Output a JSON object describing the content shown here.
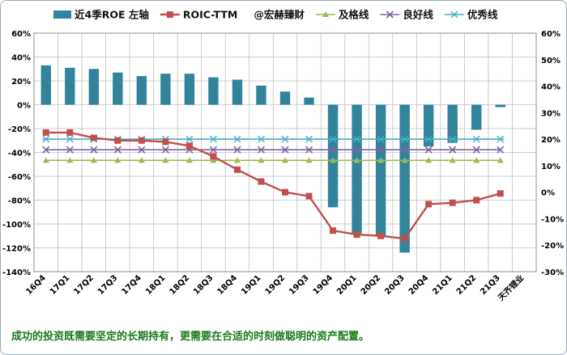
{
  "chart_data": {
    "type": "bar+line",
    "categories": [
      "16Q4",
      "17Q1",
      "17Q2",
      "17Q3",
      "17Q4",
      "18Q1",
      "18Q2",
      "18Q3",
      "18Q4",
      "19Q1",
      "19Q2",
      "19Q3",
      "19Q4",
      "20Q1",
      "20Q2",
      "20Q3",
      "20Q4",
      "21Q1",
      "21Q2",
      "21Q3",
      "天齐锂业"
    ],
    "series": [
      {
        "name": "近4季ROE 左轴",
        "type": "bar",
        "axis": "left",
        "color": "#31849b",
        "values": [
          33,
          31,
          30,
          27,
          24,
          26,
          26,
          23,
          21,
          16,
          11,
          6,
          -86,
          -108,
          -110,
          -124,
          -35,
          -32,
          -21,
          -2,
          null
        ]
      },
      {
        "name": "ROIC-TTM",
        "type": "line",
        "axis": "right",
        "color": "#c0504d",
        "marker": "square",
        "values": [
          22.5,
          22.5,
          20.5,
          19.5,
          19.5,
          19,
          17.5,
          13.5,
          8.5,
          4,
          0,
          -1.5,
          -14.5,
          -16,
          -16.5,
          -17.5,
          -4.5,
          -4,
          -3,
          -0.5,
          null
        ]
      },
      {
        "name": "及格线",
        "type": "line",
        "axis": "right",
        "color": "#9bbb59",
        "marker": "triangle",
        "values": [
          12,
          12,
          12,
          12,
          12,
          12,
          12,
          12,
          12,
          12,
          12,
          12,
          12,
          12,
          12,
          12,
          12,
          12,
          12,
          12,
          null
        ]
      },
      {
        "name": "良好线",
        "type": "line",
        "axis": "right",
        "color": "#8064a2",
        "marker": "x",
        "values": [
          16,
          16,
          16,
          16,
          16,
          16,
          16,
          16,
          16,
          16,
          16,
          16,
          16,
          16,
          16,
          16,
          16,
          16,
          16,
          16,
          null
        ]
      },
      {
        "name": "优秀线",
        "type": "line",
        "axis": "right",
        "color": "#4bacc6",
        "marker": "star",
        "values": [
          20,
          20,
          20,
          20,
          20,
          20,
          20,
          20,
          20,
          20,
          20,
          20,
          20,
          20,
          20,
          20,
          20,
          20,
          20,
          20,
          null
        ]
      }
    ],
    "left_axis": {
      "min": -140,
      "max": 60,
      "step": 20,
      "tick_labels": [
        "60%",
        "40%",
        "20%",
        "0%",
        "-20%",
        "-40%",
        "-60%",
        "-80%",
        "-100%",
        "-120%",
        "-140%"
      ]
    },
    "right_axis": {
      "min": -30,
      "max": 60,
      "step": 10,
      "tick_labels": [
        "60%",
        "50%",
        "40%",
        "30%",
        "20%",
        "10%",
        "0%",
        "-10%",
        "-20%",
        "-30%"
      ]
    },
    "legend_placement": "top",
    "watermark_label": "@宏赫臻财",
    "grid": true
  },
  "footnote": "成功的投资既需要坚定的长期持有，更需要在合适的时刻做聪明的资产配置。"
}
